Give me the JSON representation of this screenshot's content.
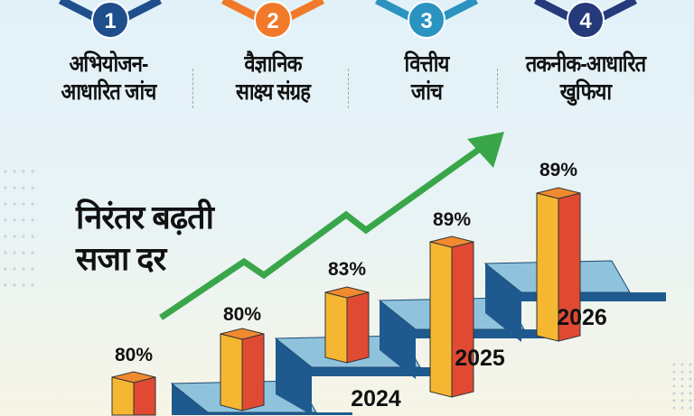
{
  "steps": [
    {
      "number": "1",
      "line1": "अभियोजन-",
      "line2": "आधारित जांच",
      "color": "#1f4e8c"
    },
    {
      "number": "2",
      "line1": "वैज्ञानिक",
      "line2": "साक्ष्य संग्रह",
      "color": "#f07a2a"
    },
    {
      "number": "3",
      "line1": "वित्तीय",
      "line2": "जांच",
      "color": "#2a93c0"
    },
    {
      "number": "4",
      "line1": "तकनीक-आधारित",
      "line2": "खुफिया",
      "color": "#243a7a"
    }
  ],
  "title": {
    "line1": "निरंतर बढ़ती",
    "line2": "सजा दर"
  },
  "chart_data": {
    "type": "bar",
    "title": "निरंतर बढ़ती सजा दर",
    "values": [
      80,
      80,
      83,
      89,
      89
    ],
    "value_labels": [
      "80%",
      "80%",
      "83%",
      "89%",
      "89%"
    ],
    "year_labels": [
      "2024",
      "2025",
      "2026"
    ],
    "unit": "%",
    "trend": "increasing"
  },
  "colors": {
    "bar_front": "#f5b731",
    "bar_side": "#e04a33",
    "bar_top": "#f08a30",
    "step_top": "#8fc3dc",
    "step_side": "#1f5a8f",
    "arrow": "#3aa64a"
  }
}
